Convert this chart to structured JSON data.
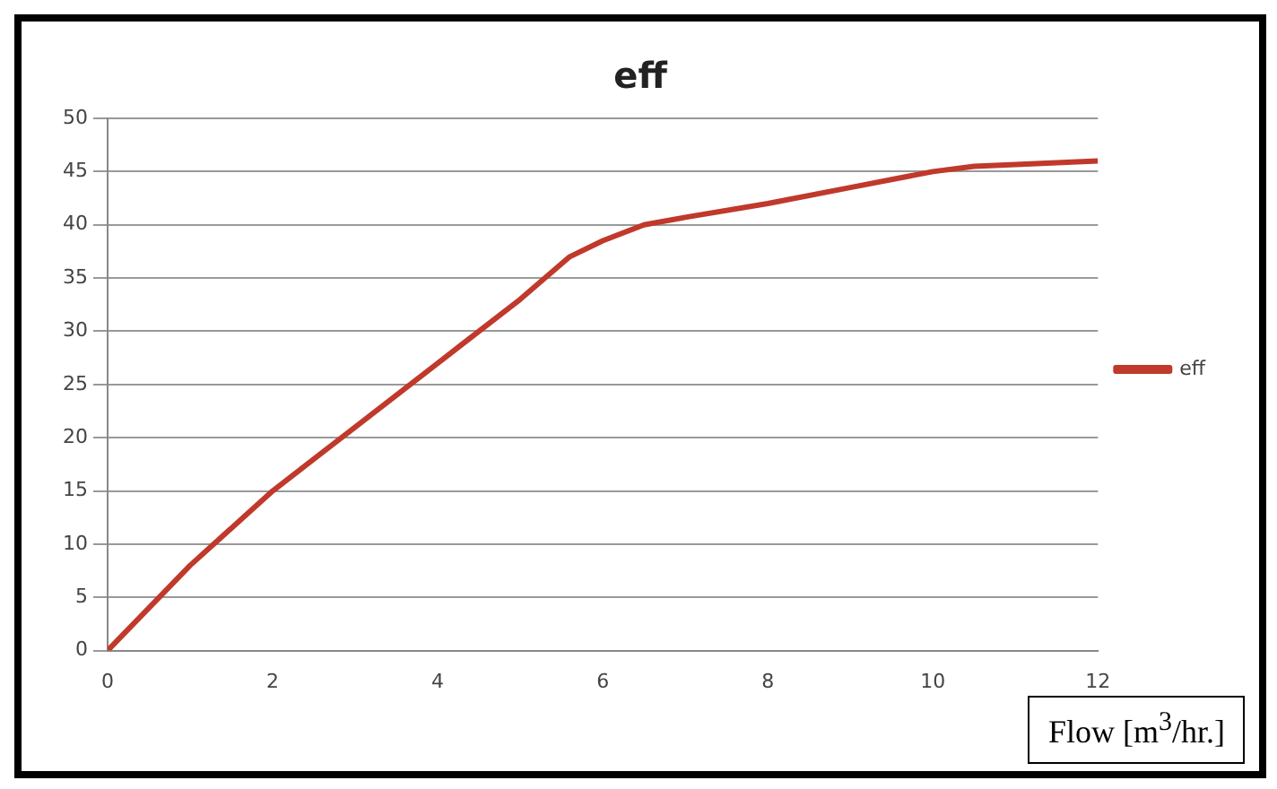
{
  "chart_data": {
    "type": "line",
    "title": "eff",
    "xlabel": "Flow [m$^{3}$/hr.]",
    "xlim": [
      0,
      12
    ],
    "xticks": [
      0,
      2,
      4,
      6,
      8,
      10,
      12
    ],
    "ylim": [
      0,
      50
    ],
    "yticks": [
      0,
      5,
      10,
      15,
      20,
      25,
      30,
      35,
      40,
      45,
      50
    ],
    "grid": "y",
    "legend": "right",
    "marker": "none",
    "line_style": "solid",
    "series": [
      {
        "name": "eff",
        "color": "#c0392b",
        "x": [
          0,
          1,
          2,
          3,
          4,
          5,
          5.6,
          6,
          6.5,
          7,
          8,
          9,
          10,
          10.5,
          12
        ],
        "values": [
          0,
          8,
          15,
          21,
          27,
          33,
          37,
          38.5,
          40,
          40.7,
          42,
          43.5,
          45,
          45.5,
          46
        ]
      }
    ]
  }
}
